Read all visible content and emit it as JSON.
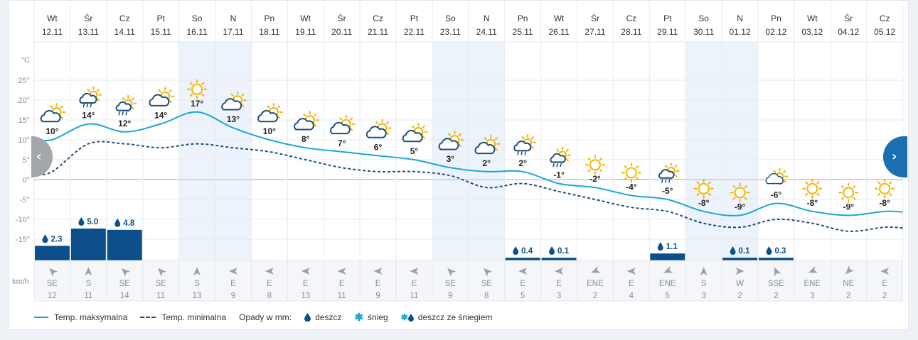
{
  "colors": {
    "max_line": "#19a8d8",
    "min_line": "#1d4f7a",
    "precip_bar": "#0d4f8b",
    "weekend_band": "#edf3fb",
    "snow": "#19a8d8",
    "rain_drop": "#0d4f8b"
  },
  "chart_data": {
    "type": "line",
    "days": [
      {
        "dow": "Wt",
        "date": "12.11",
        "max": 10,
        "min": 2,
        "label": "10°",
        "icon": "partly-cloudy",
        "precip": "2.3",
        "precip_val": 2.3,
        "wind_dir": "SE",
        "wind_speed": "12",
        "weekend": false
      },
      {
        "dow": "Śr",
        "date": "13.11",
        "max": 14,
        "min": 9,
        "label": "14°",
        "icon": "cloud-rain-sun",
        "precip": "5.0",
        "precip_val": 5.0,
        "wind_dir": "S",
        "wind_speed": "11",
        "weekend": false
      },
      {
        "dow": "Cz",
        "date": "14.11",
        "max": 12,
        "min": 9,
        "label": "12°",
        "icon": "sun-rain",
        "precip": "4.8",
        "precip_val": 4.8,
        "wind_dir": "SE",
        "wind_speed": "14",
        "weekend": false
      },
      {
        "dow": "Pt",
        "date": "15.11",
        "max": 14,
        "min": 8,
        "label": "14°",
        "icon": "partly-cloudy",
        "precip": "",
        "precip_val": 0,
        "wind_dir": "SE",
        "wind_speed": "11",
        "weekend": false
      },
      {
        "dow": "So",
        "date": "16.11",
        "max": 17,
        "min": 9,
        "label": "17°",
        "icon": "sun",
        "precip": "",
        "precip_val": 0,
        "wind_dir": "S",
        "wind_speed": "13",
        "weekend": true
      },
      {
        "dow": "N",
        "date": "17.11",
        "max": 13,
        "min": 8,
        "label": "13°",
        "icon": "partly-cloudy",
        "precip": "",
        "precip_val": 0,
        "wind_dir": "E",
        "wind_speed": "9",
        "weekend": true
      },
      {
        "dow": "Pn",
        "date": "18.11",
        "max": 10,
        "min": 7,
        "label": "10°",
        "icon": "partly-cloudy",
        "precip": "",
        "precip_val": 0,
        "wind_dir": "E",
        "wind_speed": "8",
        "weekend": false
      },
      {
        "dow": "Wt",
        "date": "19.11",
        "max": 8,
        "min": 5,
        "label": "8°",
        "icon": "partly-cloudy",
        "precip": "",
        "precip_val": 0,
        "wind_dir": "E",
        "wind_speed": "13",
        "weekend": false
      },
      {
        "dow": "Śr",
        "date": "20.11",
        "max": 7,
        "min": 3,
        "label": "7°",
        "icon": "partly-cloudy",
        "precip": "",
        "precip_val": 0,
        "wind_dir": "E",
        "wind_speed": "11",
        "weekend": false
      },
      {
        "dow": "Cz",
        "date": "21.11",
        "max": 6,
        "min": 2,
        "label": "6°",
        "icon": "partly-cloudy",
        "precip": "",
        "precip_val": 0,
        "wind_dir": "E",
        "wind_speed": "9",
        "weekend": false
      },
      {
        "dow": "Pt",
        "date": "22.11",
        "max": 5,
        "min": 2,
        "label": "5°",
        "icon": "partly-cloudy",
        "precip": "",
        "precip_val": 0,
        "wind_dir": "E",
        "wind_speed": "11",
        "weekend": false
      },
      {
        "dow": "So",
        "date": "23.11",
        "max": 3,
        "min": 1,
        "label": "3°",
        "icon": "partly-cloudy",
        "precip": "",
        "precip_val": 0,
        "wind_dir": "SE",
        "wind_speed": "9",
        "weekend": true
      },
      {
        "dow": "N",
        "date": "24.11",
        "max": 2,
        "min": -2,
        "label": "2°",
        "icon": "partly-cloudy",
        "precip": "",
        "precip_val": 0,
        "wind_dir": "SE",
        "wind_speed": "8",
        "weekend": true
      },
      {
        "dow": "Pn",
        "date": "25.11",
        "max": 2,
        "min": -1,
        "label": "2°",
        "icon": "cloud-rain-sun",
        "precip": "0.4",
        "precip_val": 0.4,
        "wind_dir": "E",
        "wind_speed": "5",
        "weekend": false
      },
      {
        "dow": "Wt",
        "date": "26.11",
        "max": -1,
        "min": -3,
        "label": "-1°",
        "icon": "sun-rain",
        "precip": "0.1",
        "precip_val": 0.1,
        "wind_dir": "E",
        "wind_speed": "3",
        "weekend": false
      },
      {
        "dow": "Śr",
        "date": "27.11",
        "max": -2,
        "min": -5,
        "label": "-2°",
        "icon": "sun",
        "precip": "",
        "precip_val": 0,
        "wind_dir": "ENE",
        "wind_speed": "2",
        "weekend": false
      },
      {
        "dow": "Cz",
        "date": "28.11",
        "max": -4,
        "min": -7,
        "label": "-4°",
        "icon": "sun",
        "precip": "",
        "precip_val": 0,
        "wind_dir": "E",
        "wind_speed": "4",
        "weekend": false
      },
      {
        "dow": "Pt",
        "date": "29.11",
        "max": -5,
        "min": -8,
        "label": "-5°",
        "icon": "sun-rain",
        "precip": "1.1",
        "precip_val": 1.1,
        "wind_dir": "ENE",
        "wind_speed": "5",
        "weekend": false
      },
      {
        "dow": "So",
        "date": "30.11",
        "max": -8,
        "min": -11,
        "label": "-8°",
        "icon": "sun",
        "precip": "",
        "precip_val": 0,
        "wind_dir": "S",
        "wind_speed": "3",
        "weekend": true
      },
      {
        "dow": "N",
        "date": "01.12",
        "max": -9,
        "min": -12,
        "label": "-9°",
        "icon": "sun",
        "precip": "0.1",
        "precip_val": 0.1,
        "wind_dir": "W",
        "wind_speed": "2",
        "weekend": true
      },
      {
        "dow": "Pn",
        "date": "02.12",
        "max": -6,
        "min": -10,
        "label": "-6°",
        "icon": "cloud-sun",
        "precip": "0.3",
        "precip_val": 0.3,
        "wind_dir": "SSE",
        "wind_speed": "2",
        "weekend": false
      },
      {
        "dow": "Wt",
        "date": "03.12",
        "max": -8,
        "min": -11,
        "label": "-8°",
        "icon": "sun",
        "precip": "",
        "precip_val": 0,
        "wind_dir": "ENE",
        "wind_speed": "3",
        "weekend": false
      },
      {
        "dow": "Śr",
        "date": "04.12",
        "max": -9,
        "min": -13,
        "label": "-9°",
        "icon": "sun",
        "precip": "",
        "precip_val": 0,
        "wind_dir": "NE",
        "wind_speed": "2",
        "weekend": false
      },
      {
        "dow": "Cz",
        "date": "05.12",
        "max": -8,
        "min": -12,
        "label": "-8°",
        "icon": "sun",
        "precip": "",
        "precip_val": 0,
        "wind_dir": "E",
        "wind_speed": "2",
        "weekend": false
      }
    ],
    "y_ticks": [
      "°C",
      "25°",
      "20°",
      "15°",
      "10°",
      "5°",
      "0°",
      "-5°",
      "-10°",
      "-15°"
    ],
    "ylim": [
      -20,
      30
    ],
    "wind_unit": "km/h",
    "grid": true
  },
  "legend": {
    "max_label": "Temp. maksymalna",
    "min_label": "Temp. minimalna",
    "precip_label": "Opady w mm:",
    "rain_label": "deszcz",
    "snow_label": "śnieg",
    "sleet_label": "deszcz ze śniegiem"
  },
  "nav": {
    "prev": "‹",
    "next": "›"
  }
}
